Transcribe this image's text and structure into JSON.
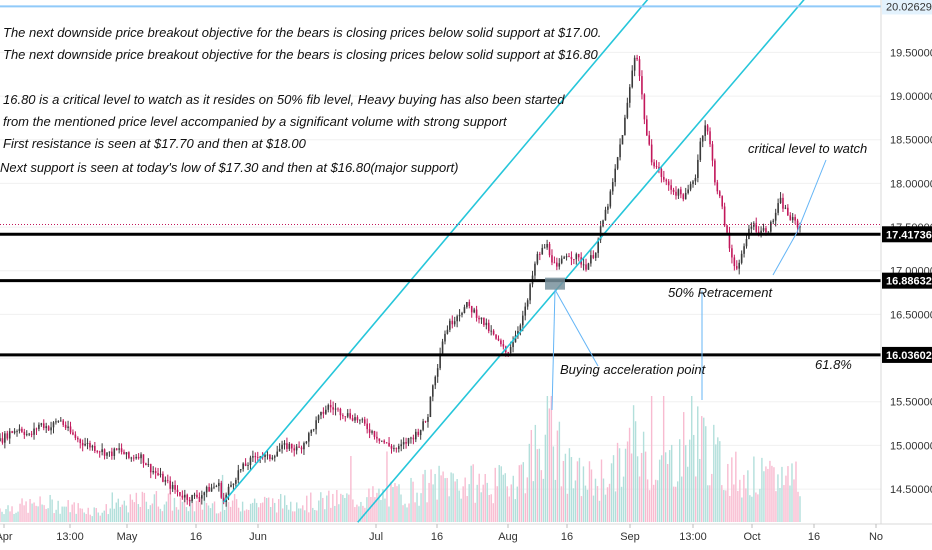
{
  "chart_data": {
    "type": "candlestick",
    "y_axis": {
      "range": [
        14.1,
        20.1
      ],
      "ticks": [
        "14.50000",
        "15.00000",
        "15.50000",
        "16.00000",
        "16.50000",
        "17.00000",
        "17.50000",
        "18.00000",
        "18.50000",
        "19.00000",
        "19.50000"
      ],
      "tick_values": [
        14.5,
        15.0,
        15.5,
        16.0,
        16.5,
        17.0,
        17.5,
        18.0,
        18.5,
        19.0,
        19.5
      ],
      "side": "right"
    },
    "x_axis": {
      "ticks": [
        "Apr",
        "13:00",
        "May",
        "16",
        "Jun",
        "Jul",
        "16",
        "Aug",
        "16",
        "Sep",
        "13:00",
        "Oct",
        "16",
        "No"
      ]
    },
    "levels": [
      {
        "label": "20.02629",
        "value": 20.02629,
        "style": "highlight"
      },
      {
        "label": "17.41736",
        "value": 17.41736,
        "style": "thick"
      },
      {
        "label": "16.88632",
        "value": 16.88632,
        "style": "thick"
      },
      {
        "label": "16.03602",
        "value": 16.03602,
        "style": "thick"
      }
    ],
    "current_price_level": 17.53,
    "price_path": [
      [
        0,
        15.05
      ],
      [
        4,
        15.15
      ],
      [
        8,
        15.2
      ],
      [
        12,
        15.1
      ],
      [
        16,
        15.25
      ],
      [
        20,
        15.2
      ],
      [
        24,
        15.3
      ],
      [
        28,
        15.15
      ],
      [
        32,
        15.05
      ],
      [
        36,
        15.0
      ],
      [
        40,
        14.95
      ],
      [
        44,
        14.9
      ],
      [
        48,
        14.95
      ],
      [
        52,
        14.85
      ],
      [
        56,
        14.9
      ],
      [
        60,
        14.75
      ],
      [
        64,
        14.65
      ],
      [
        68,
        14.55
      ],
      [
        72,
        14.45
      ],
      [
        76,
        14.4
      ],
      [
        80,
        14.42
      ],
      [
        84,
        14.5
      ],
      [
        88,
        14.55
      ],
      [
        90,
        14.35
      ],
      [
        92,
        14.5
      ],
      [
        96,
        14.7
      ],
      [
        100,
        14.8
      ],
      [
        104,
        14.9
      ],
      [
        108,
        14.85
      ],
      [
        112,
        14.95
      ],
      [
        116,
        15.0
      ],
      [
        120,
        14.95
      ],
      [
        124,
        15.1
      ],
      [
        128,
        15.3
      ],
      [
        132,
        15.45
      ],
      [
        136,
        15.4
      ],
      [
        140,
        15.35
      ],
      [
        144,
        15.3
      ],
      [
        148,
        15.2
      ],
      [
        152,
        15.1
      ],
      [
        156,
        15.0
      ],
      [
        160,
        14.95
      ],
      [
        164,
        15.05
      ],
      [
        168,
        15.15
      ],
      [
        172,
        15.3
      ],
      [
        174,
        15.7
      ],
      [
        176,
        15.9
      ],
      [
        178,
        16.2
      ],
      [
        180,
        16.35
      ],
      [
        184,
        16.5
      ],
      [
        188,
        16.6
      ],
      [
        192,
        16.5
      ],
      [
        196,
        16.35
      ],
      [
        200,
        16.2
      ],
      [
        204,
        16.05
      ],
      [
        208,
        16.3
      ],
      [
        212,
        16.6
      ],
      [
        214,
        16.9
      ],
      [
        216,
        17.15
      ],
      [
        220,
        17.3
      ],
      [
        224,
        17.0
      ],
      [
        228,
        17.2
      ],
      [
        232,
        17.15
      ],
      [
        236,
        17.05
      ],
      [
        240,
        17.25
      ],
      [
        242,
        17.5
      ],
      [
        244,
        17.7
      ],
      [
        246,
        17.9
      ],
      [
        248,
        18.2
      ],
      [
        250,
        18.5
      ],
      [
        252,
        18.8
      ],
      [
        254,
        19.2
      ],
      [
        256,
        19.55
      ],
      [
        258,
        19.1
      ],
      [
        260,
        18.6
      ],
      [
        262,
        18.3
      ],
      [
        264,
        18.2
      ],
      [
        268,
        18.0
      ],
      [
        272,
        17.9
      ],
      [
        276,
        17.85
      ],
      [
        280,
        18.1
      ],
      [
        282,
        18.5
      ],
      [
        284,
        18.7
      ],
      [
        286,
        18.4
      ],
      [
        288,
        18.0
      ],
      [
        290,
        17.8
      ],
      [
        292,
        17.5
      ],
      [
        294,
        17.2
      ],
      [
        296,
        17.05
      ],
      [
        298,
        17.1
      ],
      [
        300,
        17.3
      ],
      [
        302,
        17.55
      ],
      [
        306,
        17.45
      ],
      [
        310,
        17.5
      ],
      [
        314,
        17.8
      ],
      [
        318,
        17.6
      ],
      [
        322,
        17.5
      ]
    ],
    "price_path_x_max": 322,
    "channel_lines": [
      {
        "p1": [
          90,
          14.35
        ],
        "p2": [
          262,
          20.15
        ]
      },
      {
        "p1": [
          144,
          14.12
        ],
        "p2": [
          325,
          20.15
        ]
      }
    ],
    "volume_path": [
      [
        0,
        0.15
      ],
      [
        20,
        0.2
      ],
      [
        40,
        0.12
      ],
      [
        60,
        0.25
      ],
      [
        80,
        0.18
      ],
      [
        100,
        0.22
      ],
      [
        120,
        0.2
      ],
      [
        140,
        0.25
      ],
      [
        160,
        0.3
      ],
      [
        180,
        0.45
      ],
      [
        200,
        0.4
      ],
      [
        210,
        0.55
      ],
      [
        220,
        1.0
      ],
      [
        230,
        0.5
      ],
      [
        240,
        0.45
      ],
      [
        250,
        0.6
      ],
      [
        255,
        0.9
      ],
      [
        260,
        0.7
      ],
      [
        270,
        0.65
      ],
      [
        280,
        1.0
      ],
      [
        290,
        0.6
      ],
      [
        300,
        0.5
      ],
      [
        310,
        0.45
      ],
      [
        320,
        0.55
      ]
    ],
    "annotations": [
      {
        "id": "line1",
        "text": "The next downside price breakout objective for the bears is closing prices below solid support at $17.00."
      },
      {
        "id": "line2",
        "text": "The next downside price breakout objective for the bears is closing prices below solid support at $16.80"
      },
      {
        "id": "line3",
        "text": "16.80 is a critical level to watch as it resides on 50% fib level, Heavy buying has also been started"
      },
      {
        "id": "line4",
        "text": "from the mentioned price level accompanied by a significant volume with strong support"
      },
      {
        "id": "line5",
        "text": "First resistance is seen at $17.70 and then at $18.00"
      },
      {
        "id": "line6",
        "text": "Next support is seen at today's low of $17.30 and then at $16.80(major support)"
      },
      {
        "id": "critical",
        "text": "critical level to watch"
      },
      {
        "id": "fifty",
        "text": "50% Retracement"
      },
      {
        "id": "buying",
        "text": "Buying acceleration point"
      },
      {
        "id": "sixtyone",
        "text": "61.8%"
      }
    ],
    "colors": {
      "channel": "#26c6da",
      "candle_up": "#3a3a3a",
      "candle_down": "#c2185b",
      "volume_up": "#b2dfdb",
      "volume_down": "#f8bbd0",
      "level_line": "#000000",
      "level_label_bg": "#000000",
      "current_price": "#c2185b",
      "highlight": "#90caf9",
      "callout": "#64b5f6",
      "marker": "#78909c"
    }
  }
}
